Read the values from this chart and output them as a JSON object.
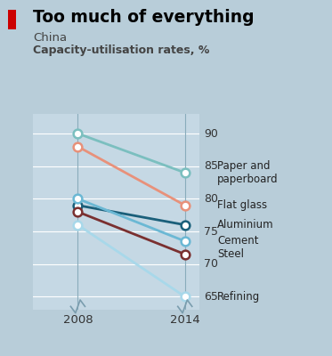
{
  "title": "Too much of everything",
  "subtitle": "China",
  "ylabel": "Capacity-utilisation rates, %",
  "years": [
    2008,
    2014
  ],
  "series": [
    {
      "name": "Paper and\npaperboard",
      "values": [
        90.0,
        84.0
      ],
      "color": "#7bbfbf"
    },
    {
      "name": "Flat glass",
      "values": [
        88.0,
        79.0
      ],
      "color": "#e8917a"
    },
    {
      "name": "Aluminium",
      "values": [
        79.0,
        76.0
      ],
      "color": "#1a5f7a"
    },
    {
      "name": "Cement",
      "values": [
        80.0,
        73.5
      ],
      "color": "#6bb8d4"
    },
    {
      "name": "Steel",
      "values": [
        78.0,
        71.5
      ],
      "color": "#7a3030"
    },
    {
      "name": "Refining",
      "values": [
        76.0,
        65.0
      ],
      "color": "#a8d8ea"
    }
  ],
  "ylim": [
    63,
    93
  ],
  "yticks": [
    65,
    70,
    75,
    80,
    85,
    90
  ],
  "background_color": "#b8cdd9",
  "plot_bg_color": "#c5d8e4",
  "grid_color": "#ffffff",
  "title_color": "#000000",
  "subtitle_color": "#444444",
  "marker_size": 7,
  "linewidth": 2.0,
  "label_fontsize": 8.5,
  "title_fontsize": 13.5,
  "subtitle_fontsize": 9.5,
  "ylabel_fontsize": 9,
  "ytick_fontsize": 9,
  "red_bar_color": "#cc0000"
}
